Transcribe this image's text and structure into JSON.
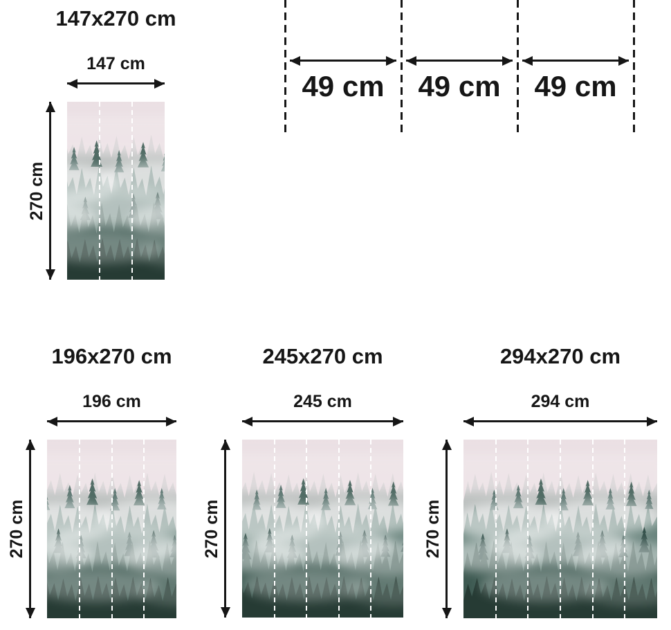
{
  "page": {
    "background_color": "#ffffff",
    "text_color": "#161616",
    "panel_divider_color": "#ffffff"
  },
  "panel_guide": {
    "boundary_line_count": 4,
    "segments": [
      {
        "width_label": "49 cm"
      },
      {
        "width_label": "49 cm"
      },
      {
        "width_label": "49 cm"
      }
    ]
  },
  "sizes": [
    {
      "title": "147x270 cm",
      "width_label": "147 cm",
      "height_label": "270 cm",
      "panels": 3
    },
    {
      "title": "196x270 cm",
      "width_label": "196 cm",
      "height_label": "270 cm",
      "panels": 4
    },
    {
      "title": "245x270 cm",
      "width_label": "245 cm",
      "height_label": "270 cm",
      "panels": 5
    },
    {
      "title": "294x270 cm",
      "width_label": "294 cm",
      "height_label": "270 cm",
      "panels": 6
    }
  ]
}
